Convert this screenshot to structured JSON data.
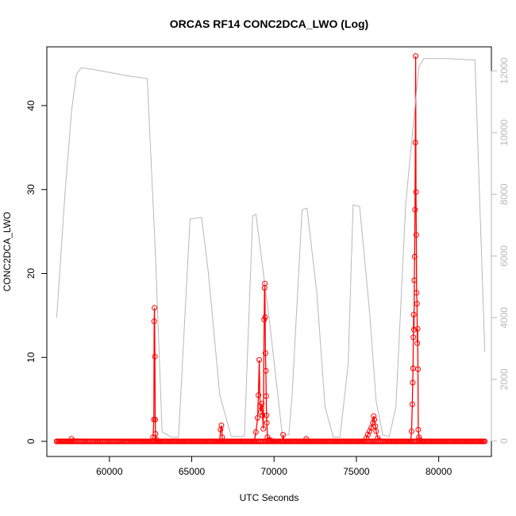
{
  "chart_data": {
    "type": "line",
    "title": "ORCAS RF14 CONC2DCA_LWO (Log)",
    "xlabel": "UTC Seconds",
    "ylabel": "CONC2DCA_LWO",
    "xlim": [
      56200,
      83200
    ],
    "ylim": [
      -1.8,
      47.0
    ],
    "y2lim": [
      -500,
      12780
    ],
    "x_ticks": [
      60000,
      65000,
      70000,
      75000,
      80000
    ],
    "y_ticks": [
      0,
      10,
      20,
      30,
      40
    ],
    "y2_ticks": [
      0,
      2000,
      4000,
      6000,
      8000,
      10000,
      12000
    ],
    "y2_axis_color": "#b8b8b8",
    "series": [
      {
        "color": "#ff0000",
        "style": "line+open-circles",
        "axis": "left",
        "x": [
          56800,
          57600,
          57700,
          62600,
          62650,
          62700,
          62720,
          62740,
          62760,
          62780,
          62800,
          62850,
          63000,
          66700,
          66750,
          66800,
          66850,
          66900,
          68800,
          68900,
          69000,
          69050,
          69100,
          69150,
          69200,
          69250,
          69300,
          69350,
          69400,
          69420,
          69440,
          69460,
          69480,
          69500,
          69520,
          69540,
          69560,
          69600,
          69700,
          69800,
          70000,
          70500,
          70550,
          70600,
          71900,
          71950,
          72000,
          75500,
          75600,
          75700,
          75800,
          75900,
          76000,
          76050,
          76100,
          76150,
          76200,
          76300,
          77000,
          78300,
          78350,
          78400,
          78420,
          78440,
          78460,
          78480,
          78500,
          78520,
          78540,
          78560,
          78580,
          78600,
          78620,
          78640,
          78660,
          78680,
          78700,
          78720,
          78740,
          78760,
          78800,
          78850,
          79000,
          82800
        ],
        "y": [
          0,
          0,
          0.3,
          0,
          0.5,
          2.6,
          14.3,
          15.9,
          10.1,
          2.6,
          0.9,
          0.2,
          0,
          0,
          1.4,
          1.9,
          0.5,
          0,
          0,
          1.1,
          2.8,
          5.5,
          9.7,
          4.2,
          3.5,
          4.5,
          3.1,
          1.5,
          14.5,
          18.3,
          18.8,
          14.8,
          10.5,
          8.4,
          5.4,
          3.1,
          2.2,
          0.5,
          0.2,
          0.1,
          0,
          0,
          0.8,
          0,
          0,
          0.3,
          0,
          0,
          0.4,
          0.8,
          1.2,
          1.6,
          2.2,
          3.0,
          2.6,
          1.8,
          1.2,
          0.4,
          0,
          0,
          1.2,
          4.4,
          7.0,
          8.7,
          12.4,
          15.1,
          13.3,
          19.2,
          22.0,
          27.6,
          35.6,
          45.9,
          29.7,
          24.6,
          17.7,
          16.4,
          11.7,
          13.4,
          8.6,
          1.4,
          0.5,
          0.2,
          0,
          0
        ]
      },
      {
        "color": "#b8b8b8",
        "style": "line",
        "axis": "right",
        "x": [
          56800,
          57300,
          57700,
          58000,
          58300,
          59000,
          60000,
          61000,
          62300,
          62800,
          63200,
          63800,
          64200,
          64900,
          65600,
          66000,
          66700,
          67400,
          68200,
          68700,
          68900,
          69700,
          70500,
          70900,
          71100,
          71700,
          72000,
          72600,
          73100,
          73600,
          74000,
          74500,
          74800,
          75200,
          75800,
          76200,
          76600,
          77000,
          77400,
          78000,
          78800,
          79100,
          80500,
          82200,
          82800
        ],
        "y": [
          4000,
          8000,
          10700,
          11900,
          12100,
          12050,
          11950,
          11850,
          11750,
          6000,
          300,
          120,
          120,
          7200,
          7250,
          5500,
          1500,
          150,
          150,
          7300,
          7350,
          4000,
          200,
          200,
          1500,
          7500,
          7550,
          4800,
          1100,
          120,
          120,
          2500,
          7650,
          7600,
          4200,
          1300,
          200,
          150,
          1100,
          7700,
          12150,
          12400,
          12400,
          12350,
          2900
        ]
      }
    ]
  }
}
